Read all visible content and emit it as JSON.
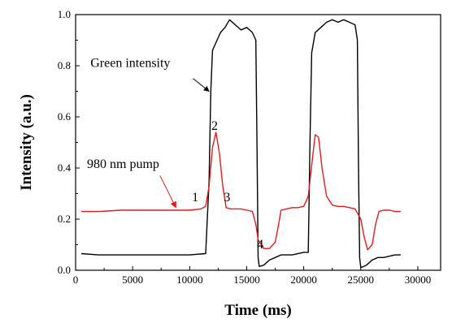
{
  "chart_data": {
    "type": "line",
    "title": "",
    "xlabel": "Time (ms)",
    "ylabel": "Intensity (a.u.)",
    "xlim": [
      0,
      32000
    ],
    "ylim": [
      0,
      1.0
    ],
    "xticks": [
      0,
      5000,
      10000,
      15000,
      20000,
      25000,
      30000
    ],
    "yticks": [
      0.0,
      0.2,
      0.4,
      0.6,
      0.8,
      1.0
    ],
    "xtick_labels": [
      "0",
      "5000",
      "10000",
      "15000",
      "20000",
      "25000",
      "30000"
    ],
    "ytick_labels": [
      "0.0",
      "0.2",
      "0.4",
      "0.6",
      "0.8",
      "1.0"
    ],
    "grid": false,
    "series": [
      {
        "name": "Green intensity",
        "color": "#000000",
        "x": [
          500,
          2000,
          4000,
          6000,
          8000,
          10000,
          11400,
          11700,
          11850,
          12000,
          12300,
          12700,
          13100,
          13500,
          14000,
          14500,
          15000,
          15500,
          15800,
          15900,
          16000,
          16100,
          16500,
          17000,
          17500,
          18000,
          19000,
          20000,
          20400,
          20550,
          20700,
          21000,
          21500,
          22000,
          22500,
          23000,
          23500,
          24000,
          24500,
          24700,
          24800,
          24900,
          25000,
          25500,
          26000,
          26500,
          27000,
          27500,
          28000,
          28500
        ],
        "y": [
          0.065,
          0.06,
          0.06,
          0.06,
          0.06,
          0.06,
          0.065,
          0.35,
          0.7,
          0.86,
          0.89,
          0.93,
          0.95,
          0.98,
          0.96,
          0.94,
          0.95,
          0.93,
          0.9,
          0.5,
          0.05,
          0.015,
          0.02,
          0.04,
          0.05,
          0.06,
          0.06,
          0.07,
          0.07,
          0.5,
          0.85,
          0.93,
          0.95,
          0.97,
          0.98,
          0.97,
          0.98,
          0.97,
          0.96,
          0.9,
          0.4,
          0.05,
          0.01,
          0.02,
          0.04,
          0.05,
          0.05,
          0.055,
          0.06,
          0.06
        ]
      },
      {
        "name": "980 nm pump",
        "color": "#e41a1c",
        "x": [
          500,
          2000,
          4000,
          6000,
          8000,
          10000,
          11000,
          11400,
          11700,
          12000,
          12300,
          12600,
          12900,
          13200,
          13600,
          14000,
          14500,
          15000,
          15500,
          15800,
          16000,
          16500,
          17000,
          17500,
          17800,
          18000,
          18500,
          19000,
          19500,
          20000,
          20400,
          20700,
          21000,
          21300,
          21600,
          22000,
          22500,
          23000,
          23500,
          24000,
          24500,
          25000,
          25300,
          25600,
          26000,
          26300,
          26600,
          27000,
          27500,
          28000,
          28500
        ],
        "y": [
          0.23,
          0.23,
          0.235,
          0.235,
          0.235,
          0.235,
          0.24,
          0.25,
          0.33,
          0.48,
          0.54,
          0.46,
          0.33,
          0.245,
          0.24,
          0.24,
          0.24,
          0.235,
          0.23,
          0.18,
          0.12,
          0.085,
          0.085,
          0.11,
          0.18,
          0.235,
          0.24,
          0.245,
          0.245,
          0.25,
          0.29,
          0.41,
          0.53,
          0.52,
          0.4,
          0.29,
          0.255,
          0.25,
          0.25,
          0.245,
          0.24,
          0.2,
          0.13,
          0.08,
          0.1,
          0.18,
          0.23,
          0.235,
          0.235,
          0.23,
          0.23
        ]
      }
    ],
    "annotations": [
      {
        "text": "Green intensity",
        "x": 1300,
        "y": 0.795
      },
      {
        "text": "980 nm pump",
        "x": 1000,
        "y": 0.4
      },
      {
        "text": "1",
        "x": 10200,
        "y": 0.27
      },
      {
        "text": "2",
        "x": 11900,
        "y": 0.55
      },
      {
        "text": "3",
        "x": 13000,
        "y": 0.27
      },
      {
        "text": "4",
        "x": 15900,
        "y": 0.085
      }
    ]
  }
}
